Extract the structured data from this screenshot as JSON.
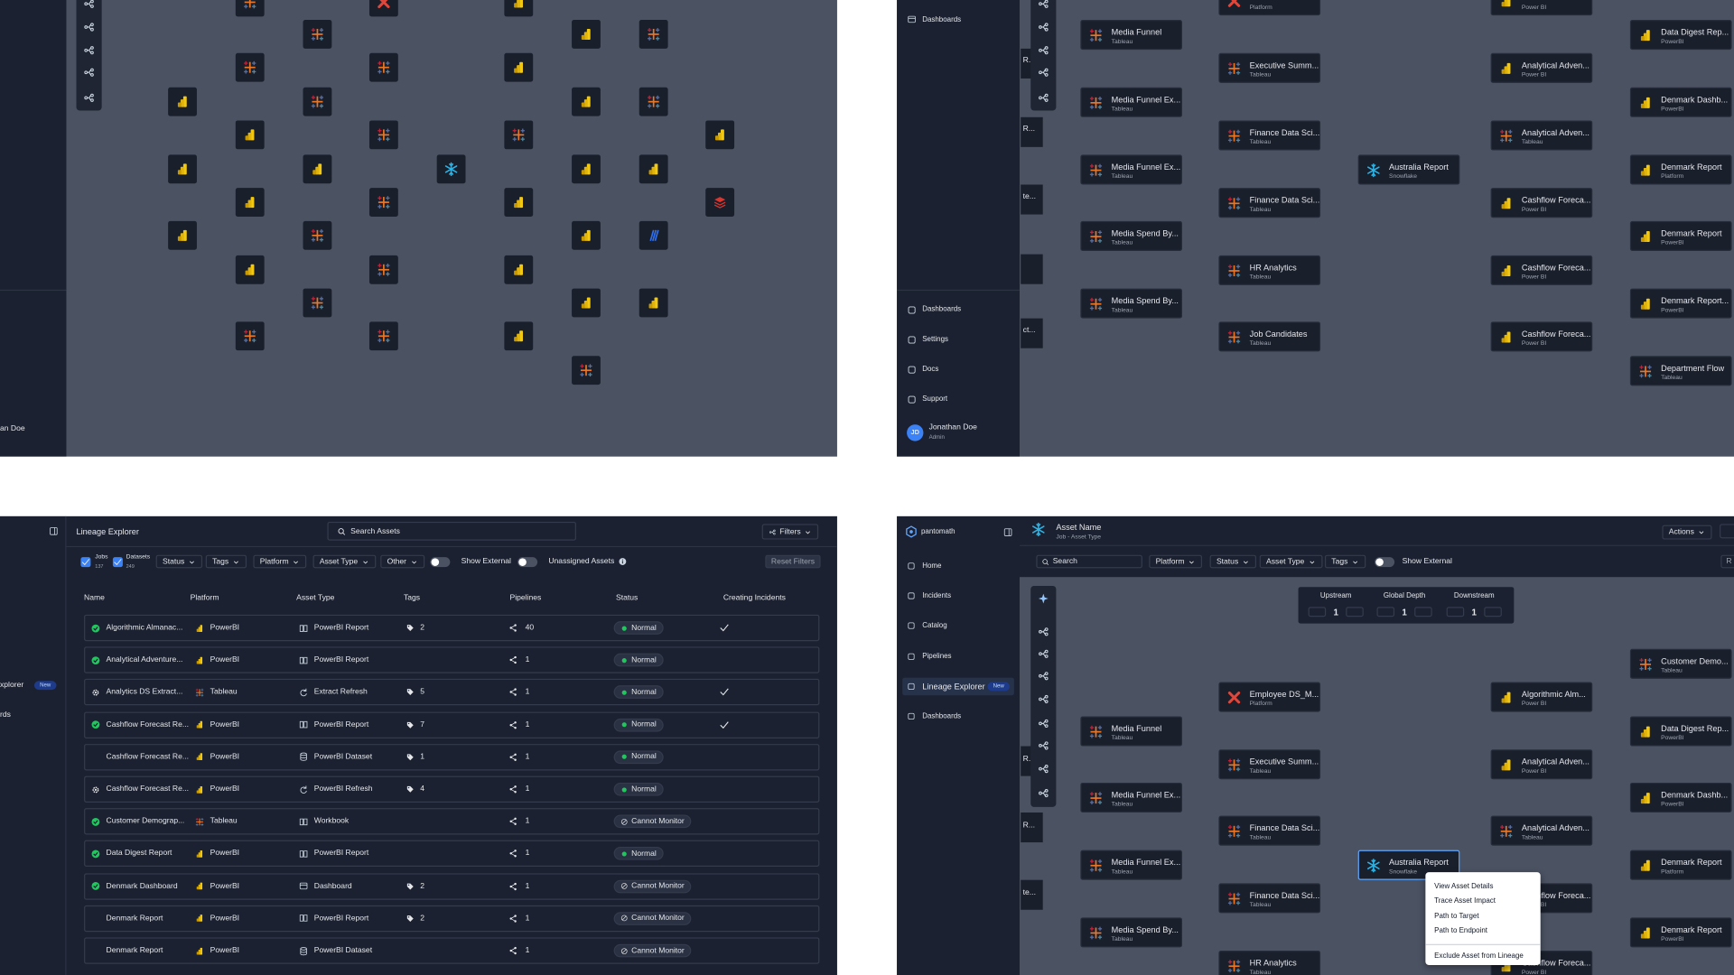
{
  "top_left": {
    "user_name": "an Doe"
  },
  "top_right": {
    "nav_top": "Dashboards",
    "nav": [
      "Dashboards",
      "Settings",
      "Docs",
      "Support"
    ],
    "user": {
      "initials": "JD",
      "name": "Jonathan Doe",
      "role": "Admin"
    },
    "edge_labels": [
      "R...",
      "R...",
      "te...",
      "ct..."
    ],
    "nodes": [
      {
        "label": "Media Funnel",
        "sub": "Tableau",
        "icon": "tableau"
      },
      {
        "label": "Media Funnel Ex...",
        "sub": "Tableau",
        "icon": "tableau"
      },
      {
        "label": "Media Funnel Ex...",
        "sub": "Tableau",
        "icon": "tableau"
      },
      {
        "label": "Media Spend By...",
        "sub": "Tableau",
        "icon": "tableau"
      },
      {
        "label": "Media Spend By...",
        "sub": "Tableau",
        "icon": "tableau"
      },
      {
        "sub": "Platform",
        "icon": "x"
      },
      {
        "label": "Executive Summ...",
        "sub": "Tableau",
        "icon": "tableau"
      },
      {
        "label": "Finance Data Sci...",
        "sub": "Tableau",
        "icon": "tableau"
      },
      {
        "label": "Finance Data Sci...",
        "sub": "Tableau",
        "icon": "tableau"
      },
      {
        "label": "HR Analytics",
        "sub": "Tableau",
        "icon": "tableau"
      },
      {
        "label": "Job Candidates",
        "sub": "Tableau",
        "icon": "tableau"
      },
      {
        "label": "Australia Report",
        "sub": "Snowflake",
        "icon": "snowflake"
      },
      {
        "sub": "Power BI",
        "icon": "powerbi"
      },
      {
        "label": "Analytical Adven...",
        "sub": "Power BI",
        "icon": "powerbi"
      },
      {
        "label": "Analytical Adven...",
        "sub": "Tableau",
        "icon": "tableau"
      },
      {
        "label": "Cashflow Foreca...",
        "sub": "Power BI",
        "icon": "powerbi"
      },
      {
        "label": "Cashflow Foreca...",
        "sub": "Power BI",
        "icon": "powerbi"
      },
      {
        "label": "Cashflow Foreca...",
        "sub": "Power BI",
        "icon": "powerbi"
      },
      {
        "label": "Data Digest Rep...",
        "sub": "PowerBI",
        "icon": "powerbi"
      },
      {
        "label": "Denmark Dashb...",
        "sub": "PowerBI",
        "icon": "powerbi"
      },
      {
        "label": "Denmark Report",
        "sub": "Platform",
        "icon": "powerbi"
      },
      {
        "label": "Denmark Report",
        "sub": "PowerBI",
        "icon": "powerbi"
      },
      {
        "label": "Denmark Report...",
        "sub": "PowerBI",
        "icon": "powerbi"
      },
      {
        "label": "Department Flow",
        "sub": "Tableau",
        "icon": "tableau"
      }
    ]
  },
  "table_view": {
    "title": "Lineage Explorer",
    "search": "Search Assets",
    "filters_button": "Filters",
    "sidebar": {
      "item": "xplorer",
      "badge": "New",
      "item2": "rds"
    },
    "filters": {
      "jobs": {
        "label": "Jobs",
        "count": 137
      },
      "datasets": {
        "label": "Datasets",
        "count": 249
      },
      "dropdowns": [
        "Status",
        "Tags",
        "Platform",
        "Asset Type",
        "Other"
      ],
      "show_external": "Show External",
      "unassigned": "Unassigned Assets",
      "reset": "Reset Filters"
    },
    "columns": [
      "Name",
      "Platform",
      "Asset Type",
      "Tags",
      "Pipelines",
      "Status",
      "Creating Incidents"
    ],
    "rows": [
      {
        "name": "Algorithmic Almanac...",
        "name_icon": "ok",
        "platform": "PowerBI",
        "platform_icon": "powerbi",
        "asset_type": "PowerBI Report",
        "type_icon": "report",
        "tags": 2,
        "pipelines": 40,
        "status": "Normal",
        "status_icon": "dot",
        "creating_incidents": true
      },
      {
        "name": "Analytical Adventure...",
        "name_icon": "ok",
        "platform": "PowerBI",
        "platform_icon": "powerbi",
        "asset_type": "PowerBI Report",
        "type_icon": "report",
        "tags": null,
        "pipelines": 1,
        "status": "Normal",
        "status_icon": "dot",
        "creating_incidents": false
      },
      {
        "name": "Analytics DS Extract...",
        "name_icon": "gear",
        "platform": "Tableau",
        "platform_icon": "tableau",
        "asset_type": "Extract Refresh",
        "type_icon": "refresh",
        "tags": 5,
        "pipelines": 1,
        "status": "Normal",
        "status_icon": "dot",
        "creating_incidents": true
      },
      {
        "name": "Cashflow Forecast Re...",
        "name_icon": "ok",
        "platform": "PowerBI",
        "platform_icon": "powerbi",
        "asset_type": "PowerBI Report",
        "type_icon": "report",
        "tags": 7,
        "pipelines": 1,
        "status": "Normal",
        "status_icon": "dot",
        "creating_incidents": true
      },
      {
        "name": "Cashflow Forecast Re...",
        "name_icon": null,
        "platform": "PowerBI",
        "platform_icon": "powerbi",
        "asset_type": "PowerBI Dataset",
        "type_icon": "dataset",
        "tags": 1,
        "pipelines": 1,
        "status": "Normal",
        "status_icon": "dot",
        "creating_incidents": false
      },
      {
        "name": "Cashflow Forecast Re...",
        "name_icon": "gear",
        "platform": "PowerBI",
        "platform_icon": "powerbi",
        "asset_type": "PowerBI Refresh",
        "type_icon": "refresh",
        "tags": 4,
        "pipelines": 1,
        "status": "Normal",
        "status_icon": "dot",
        "creating_incidents": false
      },
      {
        "name": "Customer Demograp...",
        "name_icon": "ok",
        "platform": "Tableau",
        "platform_icon": "tableau",
        "asset_type": "Workbook",
        "type_icon": "report",
        "tags": null,
        "pipelines": 1,
        "status": "Cannot Monitor",
        "status_icon": "blocked",
        "creating_incidents": false
      },
      {
        "name": "Data Digest Report",
        "name_icon": "ok",
        "platform": "PowerBI",
        "platform_icon": "powerbi",
        "asset_type": "PowerBI Report",
        "type_icon": "report",
        "tags": null,
        "pipelines": 1,
        "status": "Normal",
        "status_icon": "dot",
        "creating_incidents": false
      },
      {
        "name": "Denmark Dashboard",
        "name_icon": "ok",
        "platform": "PowerBI",
        "platform_icon": "powerbi",
        "asset_type": "Dashboard",
        "type_icon": "dash",
        "tags": 2,
        "pipelines": 1,
        "status": "Cannot Monitor",
        "status_icon": "blocked",
        "creating_incidents": false
      },
      {
        "name": "Denmark Report",
        "name_icon": null,
        "platform": "PowerBI",
        "platform_icon": "powerbi",
        "asset_type": "PowerBI Report",
        "type_icon": "report",
        "tags": 2,
        "pipelines": 1,
        "status": "Cannot Monitor",
        "status_icon": "blocked",
        "creating_incidents": false
      },
      {
        "name": "Denmark Report",
        "name_icon": null,
        "platform": "PowerBI",
        "platform_icon": "powerbi",
        "asset_type": "PowerBI Dataset",
        "type_icon": "dataset",
        "tags": null,
        "pipelines": 1,
        "status": "Cannot Monitor",
        "status_icon": "blocked",
        "creating_incidents": false
      }
    ]
  },
  "asset_view": {
    "logo": "pantomath",
    "asset_name": "Asset Name",
    "asset_type": "Job - Asset Type",
    "actions": "Actions",
    "nav": [
      {
        "label": "Home"
      },
      {
        "label": "Incidents"
      },
      {
        "label": "Catalog"
      },
      {
        "label": "Pipelines"
      },
      {
        "label": "Lineage Explorer",
        "badge": "New",
        "active": true
      },
      {
        "label": "Dashboards"
      }
    ],
    "search": "Search",
    "dropdowns": [
      "Platform",
      "Status",
      "Asset Type",
      "Tags"
    ],
    "show_external": "Show External",
    "cropped_button": "R",
    "depth": [
      {
        "label": "Upstream",
        "value": 1
      },
      {
        "label": "Global Depth",
        "value": 1
      },
      {
        "label": "Downstream",
        "value": 1
      }
    ],
    "edge_labels": [
      "R...",
      "R...",
      "te..."
    ],
    "nodes": [
      {
        "label": "Media Funnel",
        "sub": "Tableau",
        "icon": "tableau"
      },
      {
        "label": "Media Funnel Ex...",
        "sub": "Tableau",
        "icon": "tableau"
      },
      {
        "label": "Media Funnel Ex...",
        "sub": "Tableau",
        "icon": "tableau"
      },
      {
        "label": "Media Spend By...",
        "sub": "Tableau",
        "icon": "tableau"
      },
      {
        "label": "Employee DS_M...",
        "sub": "Platform",
        "icon": "x"
      },
      {
        "label": "Executive Summ...",
        "sub": "Tableau",
        "icon": "tableau"
      },
      {
        "label": "Finance Data Sci...",
        "sub": "Tableau",
        "icon": "tableau"
      },
      {
        "label": "Finance Data Sci...",
        "sub": "Tableau",
        "icon": "tableau"
      },
      {
        "label": "HR Analytics",
        "sub": "Tableau",
        "icon": "tableau"
      },
      {
        "label": "Australia Report",
        "sub": "Snowflake",
        "icon": "snowflake",
        "selected": true
      },
      {
        "label": "Algorithmic Alm...",
        "sub": "Power BI",
        "icon": "powerbi"
      },
      {
        "label": "Analytical Adven...",
        "sub": "Power BI",
        "icon": "powerbi"
      },
      {
        "label": "Analytical Adven...",
        "sub": "Tableau",
        "icon": "tableau"
      },
      {
        "label": "Cashflow Foreca...",
        "sub": "Power BI",
        "icon": "powerbi"
      },
      {
        "label": "Cashflow Foreca...",
        "sub": "Power BI",
        "icon": "powerbi"
      },
      {
        "label": "Customer Demo...",
        "sub": "Tableau",
        "icon": "tableau"
      },
      {
        "label": "Data Digest Rep...",
        "sub": "PowerBI",
        "icon": "powerbi"
      },
      {
        "label": "Denmark Dashb...",
        "sub": "PowerBI",
        "icon": "powerbi"
      },
      {
        "label": "Denmark Report",
        "sub": "Platform",
        "icon": "powerbi"
      },
      {
        "label": "Denmark Report",
        "sub": "PowerBI",
        "icon": "powerbi"
      }
    ],
    "context_menu": [
      "View Asset Details",
      "Trace Asset Impact",
      "Path to Target",
      "Path to Endpoint",
      "Exclude Asset from Lineage"
    ]
  }
}
